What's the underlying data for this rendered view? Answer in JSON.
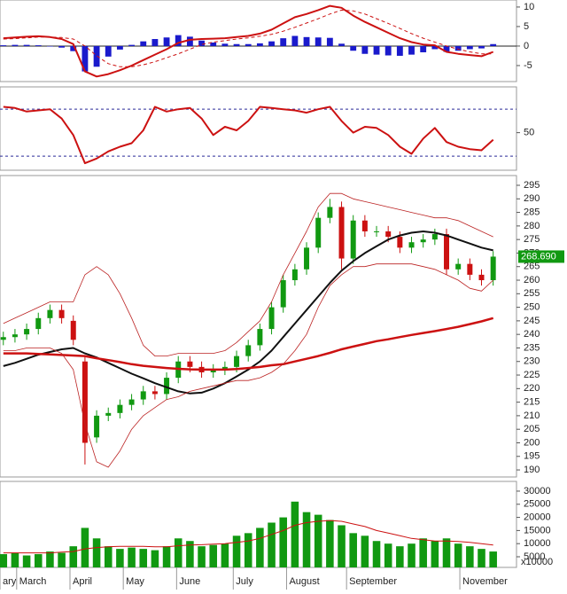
{
  "chart_data": [
    {
      "type": "macd",
      "x": [
        1,
        4.5,
        8,
        11.5,
        15,
        18.5,
        22,
        25.5,
        29,
        32.5,
        36,
        39.5,
        43,
        46.5,
        50,
        53.5,
        57,
        60.5,
        64,
        67.5,
        71,
        74.5,
        78,
        81.5,
        85,
        88.5,
        92,
        95.5,
        99,
        102.5,
        106,
        109.5,
        113,
        116.5,
        120,
        123.5,
        127,
        130.5,
        134,
        137.5,
        141,
        144.5,
        148
      ],
      "xlim": [
        0,
        155
      ],
      "ylim": [
        -9.1,
        11.8
      ],
      "yticks": [
        10,
        5,
        0,
        -5
      ],
      "zero_line": true,
      "series": [
        {
          "color": "#cc1111",
          "dash": false,
          "values": [
            2,
            2.2,
            2.4,
            2.5,
            2.3,
            1.8,
            0.5,
            -6.5,
            -7.8,
            -7.2,
            -6.2,
            -5,
            -3.6,
            -2.2,
            -0.8,
            0.8,
            1.6,
            1.8,
            1.9,
            2,
            2.3,
            2.6,
            3.2,
            4.2,
            5.8,
            7.4,
            8.2,
            9.2,
            10.3,
            9.8,
            7.8,
            6.2,
            4.8,
            3.4,
            2,
            1,
            0.4,
            0.2,
            -1.5,
            -2,
            -2.3,
            -2.6,
            -1.5
          ]
        },
        {
          "color": "#cc1111",
          "dash": true,
          "values": [
            1.8,
            1.9,
            2.1,
            2.3,
            2.3,
            2.2,
            1.8,
            0,
            -2.5,
            -4.5,
            -5.3,
            -5.3,
            -4.8,
            -4,
            -3,
            -2,
            -0.8,
            0.4,
            1,
            1.4,
            1.8,
            2.1,
            2.5,
            3,
            3.8,
            4.8,
            5.9,
            7,
            8.2,
            9.2,
            9,
            8.2,
            7,
            5.8,
            4.5,
            3.2,
            2,
            1,
            0,
            -0.8,
            -1.5,
            -2,
            -2
          ]
        }
      ],
      "histogram": {
        "color": "#1a1acc",
        "values": [
          0.2,
          0.3,
          0.3,
          0.2,
          0,
          -0.4,
          -1.3,
          -6.5,
          -5.3,
          -2.7,
          -0.9,
          0.3,
          1.2,
          1.8,
          2.2,
          2.8,
          2.4,
          1.4,
          0.9,
          0.6,
          0.5,
          0.5,
          0.7,
          1.2,
          2,
          2.6,
          2.3,
          2.2,
          2.1,
          0.6,
          -1.2,
          -2,
          -2.2,
          -2.4,
          -2.5,
          -2.2,
          -1.6,
          -0.8,
          -1.5,
          -1.2,
          -0.8,
          -0.6,
          0.5
        ]
      }
    },
    {
      "type": "rsi",
      "x": [
        1,
        4.5,
        8,
        11.5,
        15,
        18.5,
        22,
        25.5,
        29,
        32.5,
        36,
        39.5,
        43,
        46.5,
        50,
        53.5,
        57,
        60.5,
        64,
        67.5,
        71,
        74.5,
        78,
        81.5,
        85,
        88.5,
        92,
        95.5,
        99,
        102.5,
        106,
        109.5,
        113,
        116.5,
        120,
        123.5,
        127,
        130.5,
        134,
        137.5,
        141,
        144.5,
        148
      ],
      "xlim": [
        0,
        155
      ],
      "ylim": [
        18,
        89
      ],
      "yticks": [
        50
      ],
      "reference_lines": [
        70,
        30
      ],
      "reference_color": "#2a2a99",
      "series": [
        {
          "color": "#cc1111",
          "dash": false,
          "values": [
            72,
            71,
            68,
            69,
            70,
            62,
            48,
            24,
            28,
            34,
            38,
            41,
            52,
            72,
            68,
            70,
            71,
            62,
            48,
            55,
            52,
            60,
            72,
            71,
            70,
            69,
            67,
            70,
            72,
            60,
            50,
            55,
            54,
            48,
            38,
            32,
            45,
            54,
            42,
            38,
            36,
            35,
            44
          ]
        }
      ]
    },
    {
      "type": "candlestick",
      "x": [
        1,
        4.5,
        8,
        11.5,
        15,
        18.5,
        22,
        25.5,
        29,
        32.5,
        36,
        39.5,
        43,
        46.5,
        50,
        53.5,
        57,
        60.5,
        64,
        67.5,
        71,
        74.5,
        78,
        81.5,
        85,
        88.5,
        92,
        95.5,
        99,
        102.5,
        106,
        109.5,
        113,
        116.5,
        120,
        123.5,
        127,
        130.5,
        134,
        137.5,
        141,
        144.5,
        148
      ],
      "xlim": [
        0,
        155
      ],
      "ylim": [
        187.4,
        298.6
      ],
      "yticks": [
        190,
        195,
        200,
        205,
        210,
        215,
        220,
        225,
        230,
        235,
        240,
        245,
        250,
        255,
        260,
        265,
        270,
        275,
        280,
        285,
        290,
        295
      ],
      "up_color": "#119911",
      "down_color": "#cc1111",
      "open": [
        238,
        239,
        240,
        242,
        246,
        249,
        245,
        230,
        202,
        210,
        211,
        214,
        216,
        219,
        218,
        224,
        230,
        228,
        226,
        227,
        228,
        232,
        236,
        242,
        250,
        260,
        264,
        272,
        283,
        287,
        268,
        282,
        278,
        278,
        276,
        272,
        274,
        275,
        277,
        264,
        266,
        262,
        260
      ],
      "high": [
        241,
        242,
        244,
        248,
        251,
        251,
        247,
        232,
        212,
        213,
        216,
        218,
        221,
        221,
        226,
        232,
        232,
        230,
        229,
        230,
        234,
        238,
        244,
        252,
        262,
        266,
        274,
        285,
        290,
        289,
        284,
        284,
        280,
        280,
        278,
        276,
        277,
        279,
        279,
        268,
        268,
        264,
        270.69
      ],
      "low": [
        236,
        237,
        238,
        240,
        244,
        244,
        236,
        192,
        200,
        208,
        209,
        212,
        214,
        216,
        216,
        222,
        226,
        224,
        224,
        225,
        226,
        230,
        234,
        240,
        248,
        258,
        262,
        270,
        281,
        264,
        266,
        276,
        276,
        274,
        270,
        270,
        272,
        273,
        262,
        262,
        260,
        258,
        258
      ],
      "close": [
        239,
        240,
        242,
        246,
        249,
        246,
        238,
        200,
        210,
        211,
        214,
        216,
        219,
        218,
        224,
        230,
        228,
        226,
        227,
        228,
        232,
        236,
        242,
        250,
        260,
        264,
        272,
        283,
        287,
        268,
        282,
        278,
        278,
        276,
        272,
        274,
        275,
        277,
        264,
        266,
        262,
        260,
        268.69
      ],
      "last_label": "268.690",
      "last_label_color": "#119911",
      "series": [
        {
          "color": "#111111",
          "width": 2,
          "values": [
            228.3,
            229.5,
            231,
            232.5,
            233.5,
            234.5,
            235,
            233,
            231.5,
            229.5,
            227.5,
            225.5,
            223.8,
            222,
            220.5,
            219,
            218.2,
            218.5,
            220,
            222,
            224.5,
            227,
            230,
            234,
            239,
            244,
            249,
            254,
            259,
            263.5,
            267,
            270,
            272.5,
            275,
            276.5,
            277.5,
            278,
            277.5,
            276.5,
            275,
            273.5,
            272,
            271
          ]
        },
        {
          "color": "#cc1111",
          "width": 2.5,
          "values": [
            233,
            233,
            233,
            232.8,
            232.6,
            232.4,
            232.2,
            232,
            231.2,
            230.5,
            229.8,
            229,
            228.4,
            228,
            227.6,
            227.3,
            227.1,
            227,
            227,
            227,
            227.2,
            227.6,
            228,
            228.6,
            229,
            230,
            231,
            232,
            233.2,
            234.5,
            235.5,
            236.5,
            237.5,
            238.2,
            239,
            239.8,
            240.5,
            241.2,
            242,
            242.8,
            243.8,
            244.8,
            246
          ]
        },
        {
          "color": "#bb2222",
          "width": 0.8,
          "values": [
            244,
            246,
            248,
            250,
            252,
            252,
            252,
            262,
            265,
            262,
            255,
            246,
            236,
            232,
            232,
            233,
            233,
            233,
            233,
            234,
            237,
            241,
            245,
            252,
            262,
            270,
            278,
            287,
            292,
            292,
            290,
            289,
            288,
            287,
            286,
            285,
            284,
            283,
            283,
            282,
            280,
            278,
            276
          ]
        },
        {
          "color": "#bb2222",
          "width": 0.8,
          "values": [
            234,
            234,
            235,
            235,
            235,
            233,
            227,
            207,
            193,
            191,
            197,
            205,
            210,
            213,
            216,
            217,
            219,
            220,
            221,
            222,
            223,
            223,
            224,
            226,
            229,
            234,
            240,
            250,
            258,
            262,
            265,
            265,
            266,
            266,
            266,
            266,
            265,
            264,
            262,
            260,
            257,
            256,
            260
          ]
        }
      ]
    },
    {
      "type": "volume",
      "x": [
        1,
        4.5,
        8,
        11.5,
        15,
        18.5,
        22,
        25.5,
        29,
        32.5,
        36,
        39.5,
        43,
        46.5,
        50,
        53.5,
        57,
        60.5,
        64,
        67.5,
        71,
        74.5,
        78,
        81.5,
        85,
        88.5,
        92,
        95.5,
        99,
        102.5,
        106,
        109.5,
        113,
        116.5,
        120,
        123.5,
        127,
        130.5,
        134,
        137.5,
        141,
        144.5,
        148
      ],
      "xlim": [
        0,
        155
      ],
      "ylim": [
        950,
        33700
      ],
      "yticks": [
        30000,
        25000,
        20000,
        15000,
        10000,
        5000
      ],
      "unit_label": "x10000",
      "color": "#119911",
      "xticks": [
        {
          "value": 0,
          "label": "ary"
        },
        {
          "value": 5,
          "label": "March"
        },
        {
          "value": 21,
          "label": "April"
        },
        {
          "value": 37,
          "label": "May"
        },
        {
          "value": 53,
          "label": "June"
        },
        {
          "value": 70,
          "label": "July"
        },
        {
          "value": 86,
          "label": "August"
        },
        {
          "value": 104,
          "label": "September"
        },
        {
          "value": 138,
          "label": "November"
        }
      ],
      "values": [
        6000,
        6500,
        5500,
        6000,
        7000,
        6500,
        9000,
        16000,
        12000,
        9000,
        8000,
        8500,
        8000,
        7500,
        9000,
        12000,
        11000,
        9000,
        9500,
        10000,
        13000,
        14000,
        16000,
        18000,
        20000,
        26000,
        22000,
        21000,
        19000,
        17000,
        14000,
        13000,
        11000,
        10000,
        9000,
        10000,
        12000,
        11000,
        12000,
        10000,
        9000,
        8000,
        7000
      ],
      "series": [
        {
          "color": "#cc1111",
          "width": 1,
          "values": [
            6500,
            6500,
            6500,
            6500,
            6500,
            6800,
            7000,
            8000,
            8500,
            8800,
            9000,
            9000,
            9000,
            8800,
            8800,
            9200,
            9500,
            9600,
            9800,
            10000,
            10500,
            11000,
            12000,
            13500,
            15000,
            17000,
            18000,
            18500,
            18800,
            18500,
            17500,
            16500,
            15000,
            14000,
            13000,
            12000,
            11500,
            11000,
            11000,
            10800,
            10500,
            10000,
            9500
          ]
        }
      ]
    }
  ]
}
